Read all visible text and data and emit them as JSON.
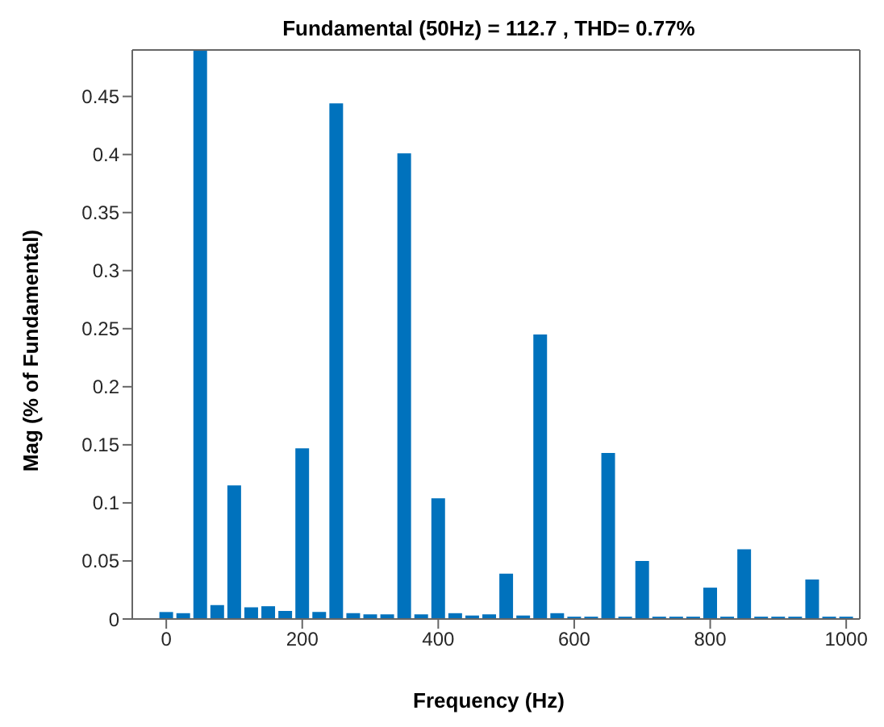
{
  "chart_data": {
    "type": "bar",
    "title": "Fundamental (50Hz) = 112.7 , THD= 0.77%",
    "xlabel": "Frequency (Hz)",
    "ylabel": "Mag (% of Fundamental)",
    "x": [
      0,
      25,
      50,
      75,
      100,
      125,
      150,
      175,
      200,
      225,
      250,
      275,
      300,
      325,
      350,
      375,
      400,
      425,
      450,
      475,
      500,
      525,
      550,
      575,
      600,
      625,
      650,
      675,
      700,
      725,
      750,
      775,
      800,
      825,
      850,
      875,
      900,
      925,
      950,
      975,
      1000
    ],
    "values": [
      0.006,
      0.005,
      0.49,
      0.012,
      0.115,
      0.01,
      0.011,
      0.007,
      0.147,
      0.006,
      0.444,
      0.005,
      0.004,
      0.004,
      0.401,
      0.004,
      0.104,
      0.005,
      0.003,
      0.004,
      0.039,
      0.003,
      0.245,
      0.005,
      0.002,
      0.002,
      0.143,
      0.002,
      0.05,
      0.002,
      0.002,
      0.002,
      0.027,
      0.002,
      0.06,
      0.002,
      0.002,
      0.002,
      0.034,
      0.002,
      0.002
    ],
    "color": "#0072bd",
    "xlim": [
      -50,
      1020
    ],
    "xticks": [
      0,
      200,
      400,
      600,
      800,
      1000
    ],
    "ylim": [
      0,
      0.49
    ],
    "yticks": [
      0,
      0.05,
      0.1,
      0.15,
      0.2,
      0.25,
      0.3,
      0.35,
      0.4,
      0.45
    ],
    "grid": false
  }
}
